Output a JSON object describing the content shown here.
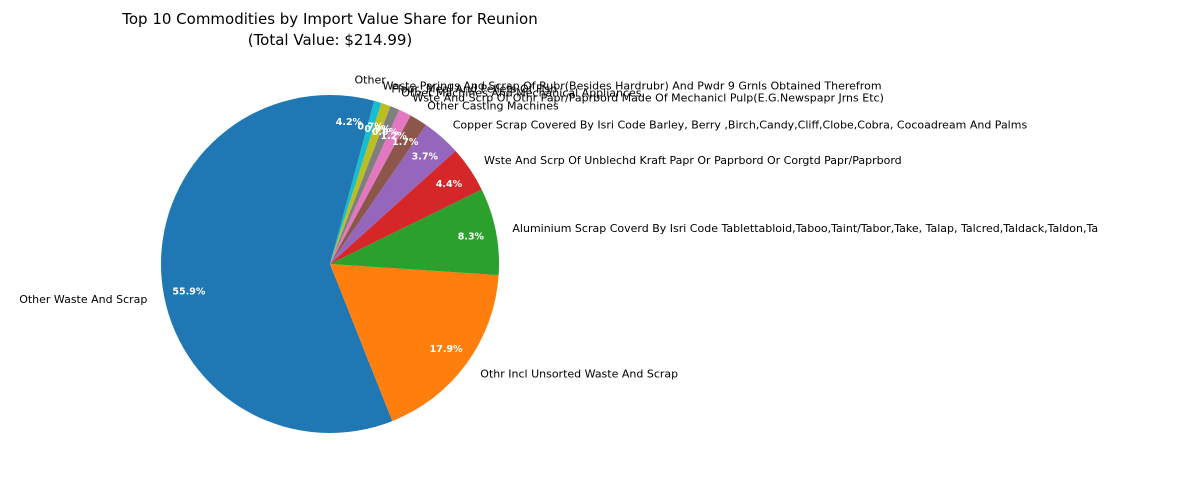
{
  "chart_data": {
    "type": "pie",
    "title": "Top 10 Commodities by Import Value Share for Reunion",
    "subtitle": "(Total Value: $214.99)",
    "start_angle_deg": 90,
    "direction": "counterclockwise",
    "slices": [
      {
        "label": "Other Waste And Scrap",
        "value": 55.9,
        "pct_label": "55.9%",
        "color": "#1f77b4"
      },
      {
        "label": "Othr Incl Unsorted Waste And Scrap",
        "value": 17.9,
        "pct_label": "17.9%",
        "color": "#ff7f0e"
      },
      {
        "label": "Aluminium Scrap Coverd By Isri Code Tablettabloid,Taboo,Taint/Tabor,Take, Talap, Talcred,Taldack,Taldon,Ta",
        "value": 8.3,
        "pct_label": "8.3%",
        "color": "#2ca02c"
      },
      {
        "label": "Wste And Scrp Of Unblechd Kraft Papr Or Paprbord Or Corgtd Papr/Paprbord",
        "value": 4.4,
        "pct_label": "4.4%",
        "color": "#d62728"
      },
      {
        "label": "Copper Scrap Covered By Isri Code Barley, Berry ,Birch,Candy,Cliff,Clobe,Cobra, Cocoadream And Palms",
        "value": 3.7,
        "pct_label": "3.7%",
        "color": "#9467bd"
      },
      {
        "label": "Other Casting Machines",
        "value": 1.7,
        "pct_label": "1.7%",
        "color": "#8c564b"
      },
      {
        "label": "Wste And Scrp Of Othr Papr/Paprbord Made Of Mechanicl Pulp(E.G.Newspapr Jrns Etc)",
        "value": 1.2,
        "pct_label": "1.2%",
        "color": "#e377c2"
      },
      {
        "label": "Other Machines And Mechanical Appliances",
        "value": 0.9,
        "pct_label": "0.9%",
        "color": "#7f7f7f"
      },
      {
        "label": "Flour, Meal And Pellets Of Fish",
        "value": 0.9,
        "pct_label": "0.9%",
        "color": "#bcbd22"
      },
      {
        "label": "Waste Parings And Scrap Of Rubr(Besides Hardrubr) And Pwdr 9 Grnls Obtained Therefrom",
        "value": 0.7,
        "pct_label": "0.7%",
        "color": "#17becf"
      },
      {
        "label": "Other",
        "value": 4.2,
        "pct_label": "4.2%",
        "color": "#1f77b4"
      }
    ]
  }
}
